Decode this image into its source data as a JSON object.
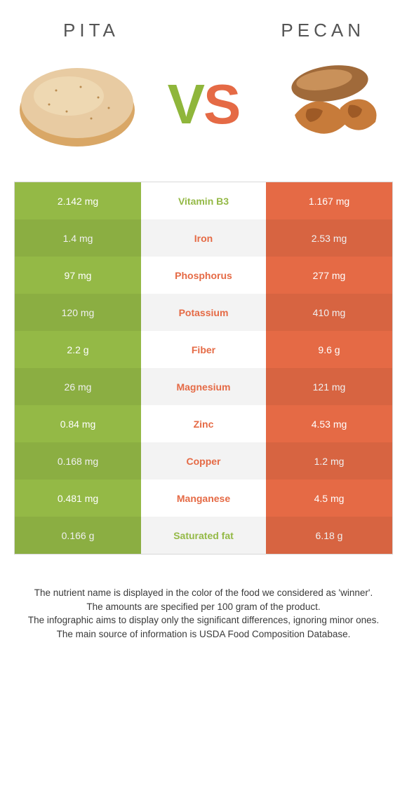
{
  "header": {
    "left_title": "PITA",
    "right_title": "PECAN",
    "vs_v": "V",
    "vs_s": "S"
  },
  "colors": {
    "left": "#94b946",
    "right": "#e56a45",
    "left_alt": "#8aaf3e",
    "right_alt": "#db6240",
    "mid_even": "#f3f3f3",
    "mid_odd": "#ffffff"
  },
  "rows": [
    {
      "nutrient": "Vitamin B3",
      "left": "2.142 mg",
      "right": "1.167 mg",
      "winner": "left"
    },
    {
      "nutrient": "Iron",
      "left": "1.4 mg",
      "right": "2.53 mg",
      "winner": "right"
    },
    {
      "nutrient": "Phosphorus",
      "left": "97 mg",
      "right": "277 mg",
      "winner": "right"
    },
    {
      "nutrient": "Potassium",
      "left": "120 mg",
      "right": "410 mg",
      "winner": "right"
    },
    {
      "nutrient": "Fiber",
      "left": "2.2 g",
      "right": "9.6 g",
      "winner": "right"
    },
    {
      "nutrient": "Magnesium",
      "left": "26 mg",
      "right": "121 mg",
      "winner": "right"
    },
    {
      "nutrient": "Zinc",
      "left": "0.84 mg",
      "right": "4.53 mg",
      "winner": "right"
    },
    {
      "nutrient": "Copper",
      "left": "0.168 mg",
      "right": "1.2 mg",
      "winner": "right"
    },
    {
      "nutrient": "Manganese",
      "left": "0.481 mg",
      "right": "4.5 mg",
      "winner": "right"
    },
    {
      "nutrient": "Saturated fat",
      "left": "0.166 g",
      "right": "6.18 g",
      "winner": "left"
    }
  ],
  "footer": {
    "l1": "The nutrient name is displayed in the color of the food we considered as 'winner'.",
    "l2": "The amounts are specified per 100 gram of the product.",
    "l3": "The infographic aims to display only the significant differences, ignoring minor ones.",
    "l4": "The main source of information is USDA Food Composition Database."
  }
}
